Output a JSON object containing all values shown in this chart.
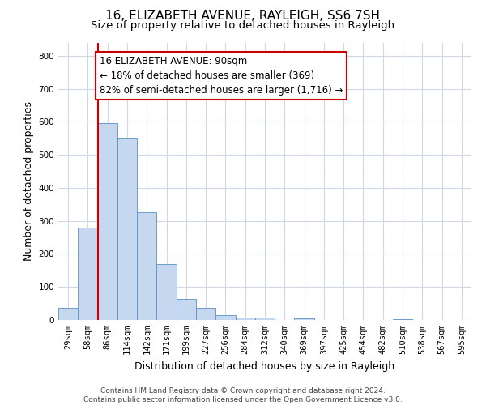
{
  "title": "16, ELIZABETH AVENUE, RAYLEIGH, SS6 7SH",
  "subtitle": "Size of property relative to detached houses in Rayleigh",
  "xlabel": "Distribution of detached houses by size in Rayleigh",
  "ylabel": "Number of detached properties",
  "bar_labels": [
    "29sqm",
    "58sqm",
    "86sqm",
    "114sqm",
    "142sqm",
    "171sqm",
    "199sqm",
    "227sqm",
    "256sqm",
    "284sqm",
    "312sqm",
    "340sqm",
    "369sqm",
    "397sqm",
    "425sqm",
    "454sqm",
    "482sqm",
    "510sqm",
    "538sqm",
    "567sqm",
    "595sqm"
  ],
  "bar_values": [
    38,
    280,
    597,
    553,
    325,
    170,
    63,
    38,
    15,
    7,
    7,
    0,
    5,
    0,
    0,
    0,
    0,
    3,
    0,
    0,
    0
  ],
  "bar_color": "#c5d8f0",
  "bar_edge_color": "#5a8fc3",
  "property_line_color": "#cc0000",
  "annotation_text": "16 ELIZABETH AVENUE: 90sqm\n← 18% of detached houses are smaller (369)\n82% of semi-detached houses are larger (1,716) →",
  "annotation_box_color": "#ffffff",
  "annotation_box_edge": "#cc0000",
  "ylim": [
    0,
    840
  ],
  "yticks": [
    0,
    100,
    200,
    300,
    400,
    500,
    600,
    700,
    800
  ],
  "footer_text": "Contains HM Land Registry data © Crown copyright and database right 2024.\nContains public sector information licensed under the Open Government Licence v3.0.",
  "bg_color": "#ffffff",
  "grid_color": "#d0d8e8",
  "title_fontsize": 11,
  "subtitle_fontsize": 9.5,
  "axis_label_fontsize": 9,
  "tick_fontsize": 7.5,
  "annotation_fontsize": 8.5,
  "footer_fontsize": 6.5
}
